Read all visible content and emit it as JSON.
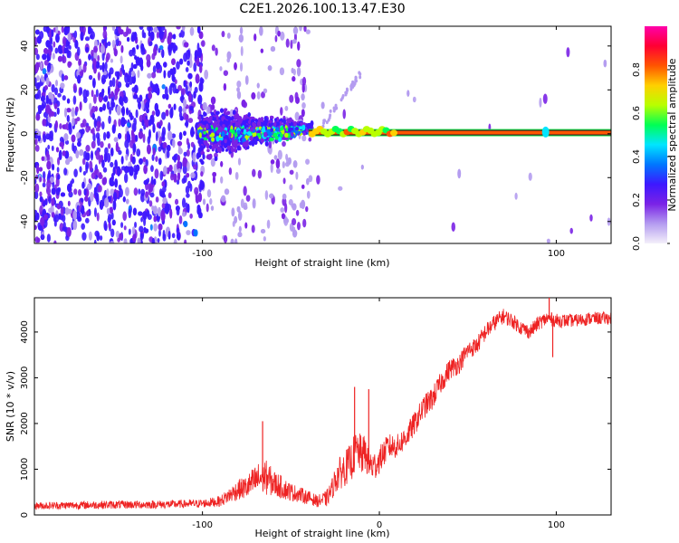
{
  "title": "C2E1.2026.100.13.47.E30",
  "chart_data": [
    {
      "type": "heatmap",
      "xlabel": "Height of straight line (km)",
      "ylabel": "Frequency (Hz)",
      "xlim": [
        -195,
        131
      ],
      "ylim": [
        -50,
        49
      ],
      "xticks": [
        -100,
        0,
        100
      ],
      "xtick_labels": [
        "-100",
        "",
        "100"
      ],
      "yticks": [
        -40,
        -20,
        0,
        20,
        40
      ],
      "ytick_labels": [
        "-40",
        "-20",
        "0",
        "20",
        "40"
      ],
      "carrier": {
        "x_start": -40,
        "x_end": 131,
        "freq": 0.5,
        "amplitude": 0.85
      },
      "colorbar": {
        "label": "Normalized spectral amplitude",
        "range": [
          0.0,
          1.0
        ],
        "ticks": [
          0.0,
          0.2,
          0.4,
          0.6,
          0.8
        ],
        "tick_labels": [
          "0.0",
          "0.2",
          "0.4",
          "0.6",
          "0.8"
        ],
        "colors": [
          "#f4f0fa",
          "#b49cf0",
          "#7a22e6",
          "#3d18ff",
          "#0077ff",
          "#00e5ff",
          "#00ff55",
          "#b8ff00",
          "#ffd000",
          "#ff5500",
          "#ff0033",
          "#ff00aa"
        ]
      }
    },
    {
      "type": "line",
      "title": "",
      "xlabel": "Height of straight line (km)",
      "ylabel": "SNR (10 * v/v)",
      "xlim": [
        -195,
        131
      ],
      "ylim": [
        0,
        4750
      ],
      "xticks": [
        -100,
        0,
        100
      ],
      "xtick_labels": [
        "-100",
        "0",
        "100"
      ],
      "yticks": [
        0,
        1000,
        2000,
        3000,
        4000
      ],
      "ytick_labels": [
        "0",
        "1000",
        "2000",
        "3000",
        "4000"
      ],
      "color": "#ee2222",
      "series": [
        {
          "name": "SNR",
          "x": [
            -195,
            -160,
            -120,
            -100,
            -90,
            -80,
            -75,
            -70,
            -65,
            -60,
            -55,
            -50,
            -45,
            -40,
            -35,
            -30,
            -27,
            -24,
            -20,
            -16,
            -14,
            -12,
            -10,
            -8,
            -6,
            -4,
            -2,
            0,
            5,
            10,
            15,
            20,
            25,
            30,
            35,
            40,
            45,
            50,
            55,
            60,
            65,
            70,
            75,
            80,
            85,
            90,
            95,
            100,
            110,
            120,
            131
          ],
          "y": [
            200,
            220,
            230,
            250,
            300,
            550,
            600,
            750,
            850,
            700,
            600,
            500,
            450,
            380,
            300,
            350,
            550,
            850,
            1000,
            1150,
            1350,
            1400,
            1300,
            1350,
            1150,
            1050,
            1100,
            1200,
            1500,
            1500,
            1700,
            2000,
            2350,
            2550,
            2900,
            3200,
            3300,
            3600,
            3700,
            4000,
            4200,
            4350,
            4250,
            4100,
            4000,
            4200,
            4300,
            4250,
            4250,
            4300,
            4300
          ],
          "noise": [
            80,
            90,
            90,
            90,
            120,
            220,
            260,
            350,
            400,
            300,
            250,
            200,
            170,
            150,
            130,
            180,
            220,
            350,
            380,
            420,
            450,
            450,
            420,
            420,
            380,
            340,
            320,
            300,
            280,
            260,
            260,
            260,
            260,
            260,
            240,
            230,
            220,
            200,
            200,
            190,
            180,
            170,
            160,
            160,
            160,
            160,
            160,
            150,
            140,
            140,
            140
          ]
        }
      ],
      "annotations": [
        {
          "x": -66,
          "y": 2050,
          "text": "spike"
        },
        {
          "x": -14,
          "y": 2800,
          "text": "spike"
        },
        {
          "x": -6,
          "y": 2750,
          "text": "spike"
        },
        {
          "x": 96,
          "y": 4750,
          "text": "spike"
        },
        {
          "x": 98,
          "y": 3450,
          "text": "dip"
        }
      ]
    }
  ]
}
